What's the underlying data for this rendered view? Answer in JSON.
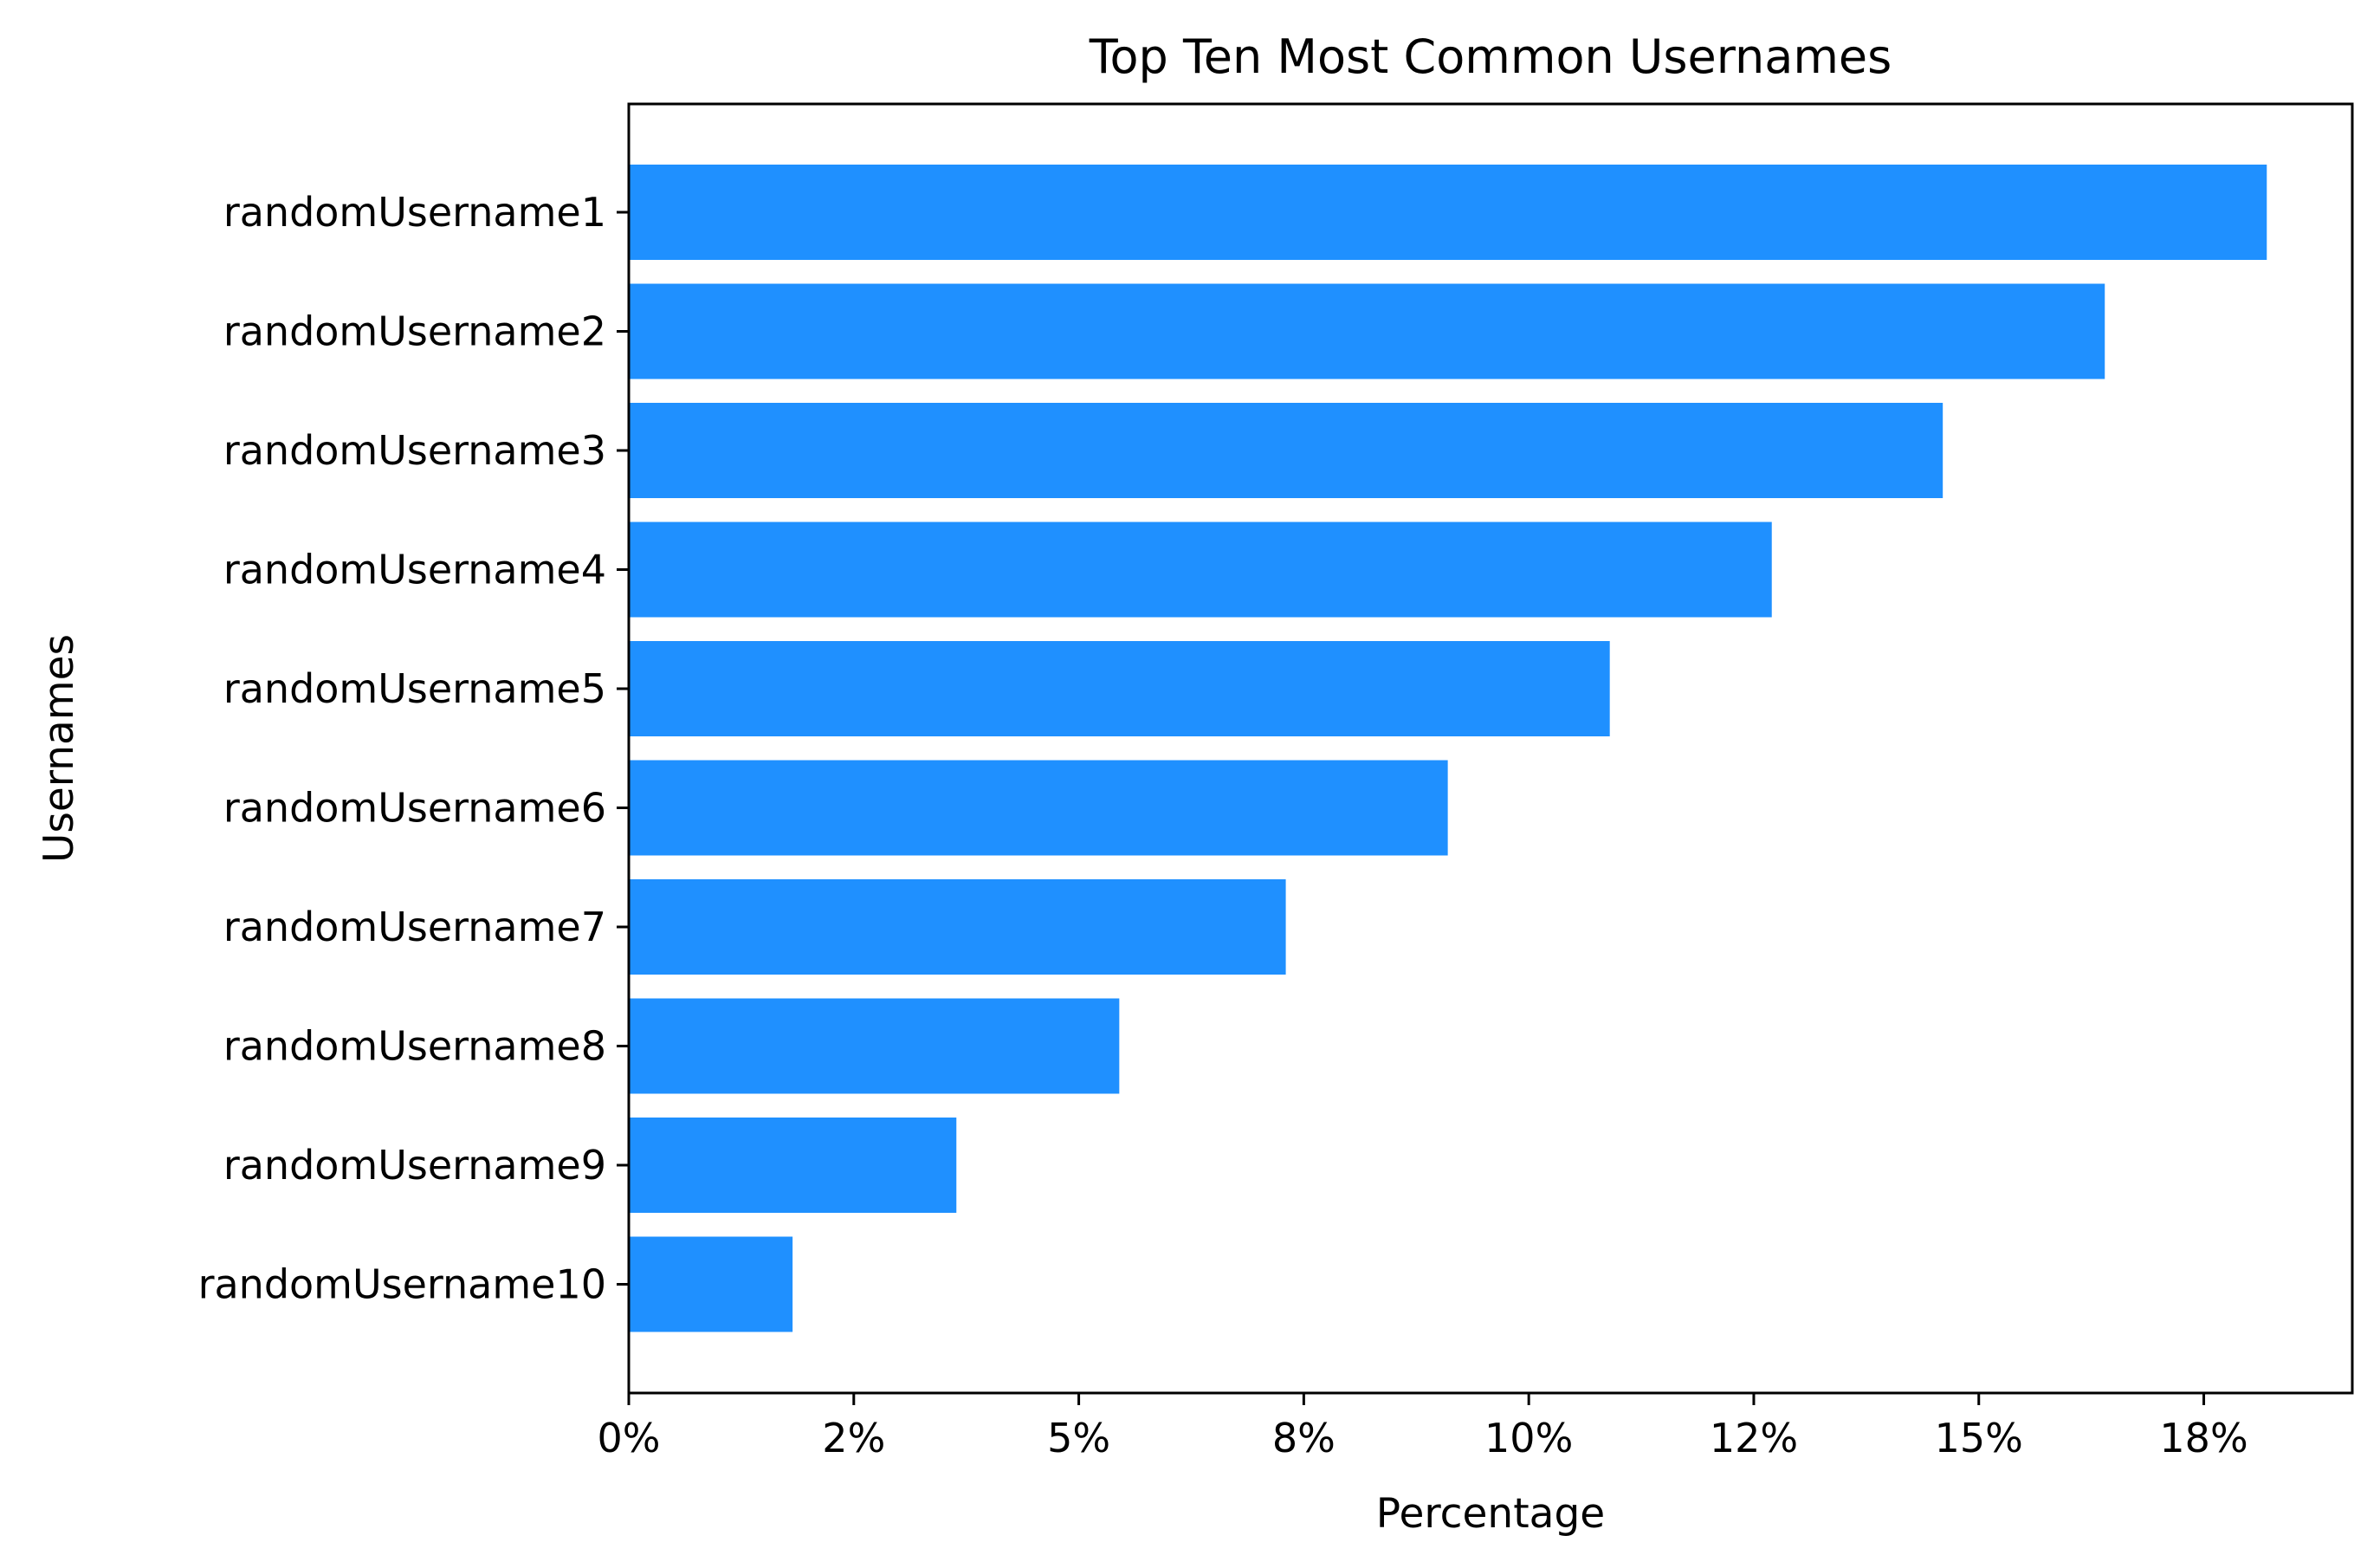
{
  "chart_data": {
    "type": "bar",
    "orientation": "horizontal",
    "title": "Top Ten Most Common Usernames",
    "xlabel": "Percentage",
    "ylabel": "Usernames",
    "categories": [
      "randomUsername1",
      "randomUsername2",
      "randomUsername3",
      "randomUsername4",
      "randomUsername5",
      "randomUsername6",
      "randomUsername7",
      "randomUsername8",
      "randomUsername9",
      "randomUsername10"
    ],
    "values": [
      18.2,
      16.4,
      14.6,
      12.7,
      10.9,
      9.1,
      7.3,
      5.45,
      3.64,
      1.82
    ],
    "xlim": [
      0,
      19.15
    ],
    "xticks": [
      {
        "value": 0,
        "label": "0%"
      },
      {
        "value": 2.5,
        "label": "2%"
      },
      {
        "value": 5,
        "label": "5%"
      },
      {
        "value": 7.5,
        "label": "8%"
      },
      {
        "value": 10,
        "label": "10%"
      },
      {
        "value": 12.5,
        "label": "12%"
      },
      {
        "value": 15,
        "label": "15%"
      },
      {
        "value": 17.5,
        "label": "18%"
      }
    ],
    "bar_color": "#1f90ff",
    "grid": false
  }
}
